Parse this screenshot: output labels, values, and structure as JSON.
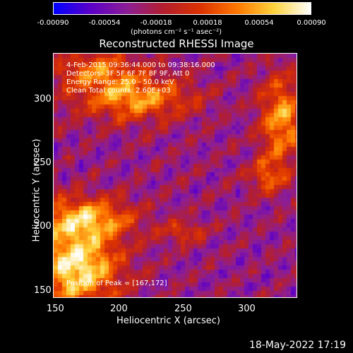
{
  "colorbar": {
    "ticks": [
      "-0.00090",
      "-0.00054",
      "-0.00018",
      "0.00018",
      "0.00054",
      "0.00090"
    ],
    "units": "(photons cm⁻² s⁻¹ asec⁻²)",
    "colors": [
      "#0000ff",
      "#5c00c8",
      "#8c1e96",
      "#b41e2d",
      "#dc3200",
      "#ff7800",
      "#ffd23c",
      "#ffffff"
    ]
  },
  "title": "Reconstructed RHESSI Image",
  "info": {
    "time": "4-Feb-2015 09:36:44.000 to 09:38:16.000",
    "detectors": "Detectors: 3F 5F 6F 7F 8F 9F, Att 0",
    "energy": "Energy Range: 25.0 - 50.0 keV",
    "clean": "Clean     Total counts: 2.60E+03",
    "peak": "Position of Peak = [167,172]"
  },
  "x_axis": {
    "title": "Heliocentric X (arcsec)",
    "ticks": [
      "150",
      "200",
      "250",
      "300"
    ]
  },
  "y_axis": {
    "title": "Heliocentric Y (arcsec)",
    "ticks": [
      "300",
      "250",
      "200",
      "150"
    ]
  },
  "footer_date": "18-May-2022 17:19"
}
